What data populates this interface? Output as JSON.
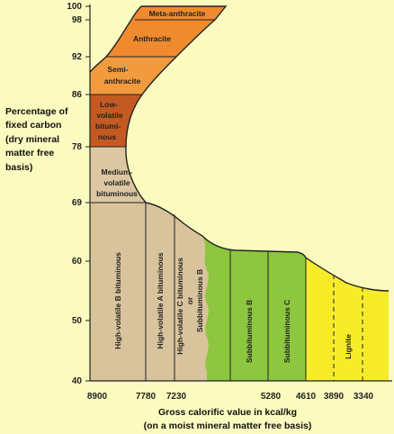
{
  "y_axis_label_lines": [
    "Percentage of",
    "fixed carbon",
    "(dry mineral",
    "matter free",
    "basis)"
  ],
  "x_axis_label_lines": [
    "Gross calorific value in kcal/kg",
    "(on a moist mineral matter free basis)"
  ],
  "y_ticks": [
    "100",
    "98",
    "92",
    "86",
    "78",
    "69",
    "60",
    "50",
    "40"
  ],
  "x_ticks": [
    "8900",
    "7780",
    "7230",
    "5280",
    "4610",
    "3890",
    "3340"
  ],
  "regions": [
    {
      "name": "meta-anthracite",
      "lines": [
        "Meta-anthracite"
      ],
      "color": "#ef8a2f"
    },
    {
      "name": "anthracite",
      "lines": [
        "Anthracite"
      ],
      "color": "#ef8a2f"
    },
    {
      "name": "semi-anthracite",
      "lines": [
        "Semi-",
        "anthracite"
      ],
      "color": "#f19b3e"
    },
    {
      "name": "low-volatile-bituminous",
      "lines": [
        "Low-",
        "volatile",
        "bitumi-",
        "nous"
      ],
      "color": "#c45a22"
    },
    {
      "name": "medium-volatile-bituminous",
      "lines": [
        "Medium-",
        "volatile",
        "bituminous"
      ],
      "color": "#dcc7a2"
    },
    {
      "name": "high-volatile-b-bituminous",
      "lines": [
        "High-volatile B bituminous"
      ],
      "color": "#d8c39c"
    },
    {
      "name": "high-volatile-a-bituminous",
      "lines": [
        "High-volatile A bituminous"
      ],
      "color": "#d8c39c"
    },
    {
      "name": "high-volatile-c-bituminous",
      "lines": [
        "High-volatile C bituminous",
        "or",
        "Subbituminous B"
      ],
      "color": "#d8c39c"
    },
    {
      "name": "subbituminous-b",
      "lines": [
        "Subbituminous B"
      ],
      "color": "#8dc63f"
    },
    {
      "name": "subbituminous-c",
      "lines": [
        "Subbituminous C"
      ],
      "color": "#8dc63f"
    },
    {
      "name": "lignite",
      "lines": [
        "Lignite"
      ],
      "color": "#f6ec2a"
    }
  ]
}
